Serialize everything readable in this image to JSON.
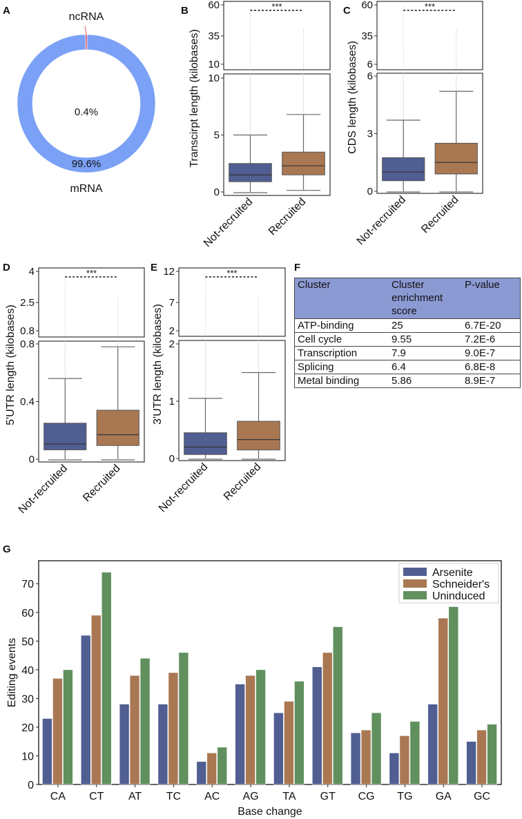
{
  "panel_letters": [
    "A",
    "B",
    "C",
    "D",
    "E",
    "F",
    "G"
  ],
  "colors": {
    "not_recruited": "#515e92",
    "recruited": "#a97853",
    "arsenite": "#515e92",
    "schneiders": "#a97853",
    "uninduced": "#60905e",
    "mrna": "#7ba1f6",
    "ncrna": "#e05a6a",
    "table_header": "#8c9ad4"
  },
  "chart_data": [
    {
      "panel": "A",
      "type": "pie",
      "style": "donut",
      "slices": [
        {
          "label": "mRNA",
          "value": 99.6,
          "text": "99.6%"
        },
        {
          "label": "ncRNA",
          "value": 0.4,
          "text": "0.4%"
        }
      ]
    },
    {
      "panel": "B",
      "type": "box",
      "ylabel": "Transcirpt length (kilobases)",
      "categories": [
        "Not-recruited",
        "Recruited"
      ],
      "broken_axis": {
        "upper_ticks": [
          10,
          35,
          60
        ],
        "lower_ticks": [
          0,
          5,
          10
        ],
        "lower_max": 10
      },
      "boxes": [
        {
          "whislo": 0,
          "q1": 0.9,
          "med": 1.5,
          "q3": 2.5,
          "whishi": 5.0
        },
        {
          "whislo": 0.2,
          "q1": 1.5,
          "med": 2.3,
          "q3": 3.5,
          "whishi": 6.8
        }
      ],
      "significance": "***"
    },
    {
      "panel": "C",
      "type": "box",
      "ylabel": "CDS length (kilobases)",
      "categories": [
        "Not-recruited",
        "Recruited"
      ],
      "broken_axis": {
        "upper_ticks": [
          6,
          35,
          60
        ],
        "lower_ticks": [
          0,
          3,
          6
        ],
        "lower_max": 6
      },
      "boxes": [
        {
          "whislo": 0,
          "q1": 0.55,
          "med": 1.0,
          "q3": 1.75,
          "whishi": 3.7
        },
        {
          "whislo": 0,
          "q1": 0.9,
          "med": 1.5,
          "q3": 2.5,
          "whishi": 5.2
        }
      ],
      "significance": "***"
    },
    {
      "panel": "D",
      "type": "box",
      "ylabel": "5'UTR length (kilobases)",
      "categories": [
        "Not-recruited",
        "Recruited"
      ],
      "broken_axis": {
        "upper_ticks": [
          0.8,
          2.5,
          4
        ],
        "lower_ticks": [
          0,
          0.4,
          0.8
        ],
        "lower_max": 0.8
      },
      "boxes": [
        {
          "whislo": 0,
          "q1": 0.065,
          "med": 0.105,
          "q3": 0.25,
          "whishi": 0.56
        },
        {
          "whislo": 0,
          "q1": 0.095,
          "med": 0.17,
          "q3": 0.34,
          "whishi": 0.78
        }
      ],
      "significance": "***"
    },
    {
      "panel": "E",
      "type": "box",
      "ylabel": "3'UTR length (kilobases)",
      "categories": [
        "Not-recruited",
        "Recruited"
      ],
      "broken_axis": {
        "upper_ticks": [
          2,
          7,
          12
        ],
        "lower_ticks": [
          0,
          1,
          2
        ],
        "lower_max": 2
      },
      "boxes": [
        {
          "whislo": 0,
          "q1": 0.07,
          "med": 0.2,
          "q3": 0.45,
          "whishi": 1.05
        },
        {
          "whislo": 0,
          "q1": 0.15,
          "med": 0.33,
          "q3": 0.65,
          "whishi": 1.5
        }
      ],
      "significance": "***"
    },
    {
      "panel": "F",
      "type": "table",
      "columns": [
        "Cluster",
        "Cluster enrichment score",
        "P-value"
      ],
      "rows": [
        [
          "ATP-binding",
          "25",
          "6.7E-20"
        ],
        [
          "Cell cycle",
          "9.55",
          "7.2E-6"
        ],
        [
          "Transcription",
          "7.9",
          "9.0E-7"
        ],
        [
          "Splicing",
          "6.4",
          "6.8E-8"
        ],
        [
          "Metal binding",
          "5.86",
          "8.9E-7"
        ]
      ]
    },
    {
      "panel": "G",
      "type": "bar",
      "xlabel": "Base change",
      "ylabel": "Editing events",
      "ylim": [
        0,
        78
      ],
      "yticks": [
        0,
        10,
        20,
        30,
        40,
        50,
        60,
        70
      ],
      "legend": "top-right",
      "categories": [
        "CA",
        "CT",
        "AT",
        "TC",
        "AC",
        "AG",
        "TA",
        "GT",
        "CG",
        "TG",
        "GA",
        "GC"
      ],
      "series": [
        {
          "name": "Arsenite",
          "values": [
            23,
            52,
            28,
            28,
            8,
            35,
            25,
            41,
            18,
            11,
            28,
            15
          ]
        },
        {
          "name": "Schneider's",
          "values": [
            37,
            59,
            38,
            39,
            11,
            38,
            29,
            46,
            19,
            17,
            58,
            19
          ]
        },
        {
          "name": "Uninduced",
          "values": [
            40,
            74,
            44,
            46,
            13,
            40,
            36,
            55,
            25,
            22,
            62,
            21
          ]
        }
      ]
    }
  ]
}
